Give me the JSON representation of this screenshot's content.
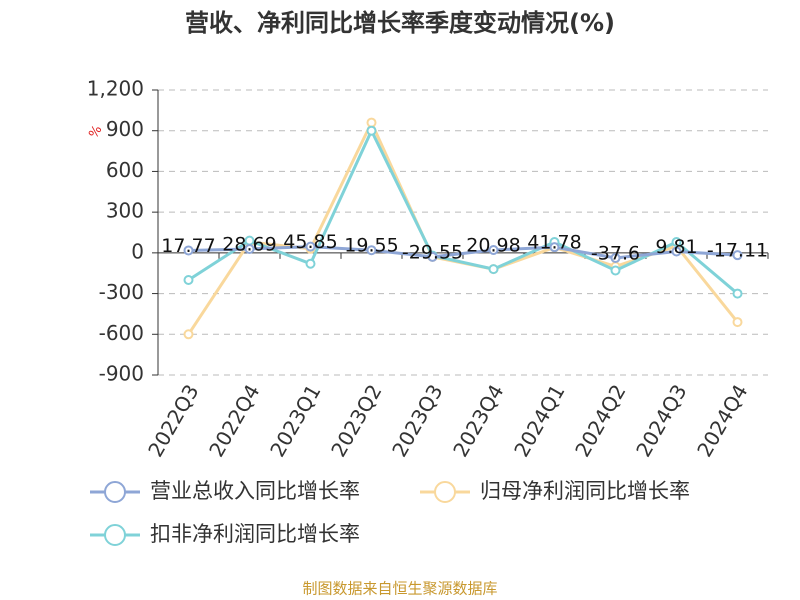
{
  "chart_data": {
    "type": "line",
    "title": "营收、净利同比增长率季度变动情况(%)",
    "y_unit": "%",
    "source": "制图数据来自恒生聚源数据库",
    "categories": [
      "2022Q3",
      "2022Q4",
      "2023Q1",
      "2023Q2",
      "2023Q3",
      "2023Q4",
      "2024Q1",
      "2024Q2",
      "2024Q3",
      "2024Q4"
    ],
    "series": [
      {
        "name": "营业总收入同比增长率",
        "color": "#8ea6d6",
        "values": [
          17.77,
          28.69,
          45.85,
          19.55,
          -29.55,
          20.98,
          41.78,
          -37.6,
          9.81,
          -17.11
        ],
        "show_labels": true
      },
      {
        "name": "归母净利润同比增长率",
        "color": "#f9d89c",
        "values": [
          -600,
          80,
          30,
          960,
          -30,
          -120,
          40,
          -100,
          50,
          -510
        ]
      },
      {
        "name": "扣非净利润同比增长率",
        "color": "#7fd2d8",
        "values": [
          -200,
          90,
          -80,
          900,
          -20,
          -120,
          80,
          -130,
          80,
          -300
        ]
      }
    ],
    "ylim": [
      -900,
      1200
    ],
    "yticks": [
      -900,
      -600,
      -300,
      0,
      300,
      600,
      900,
      {
        "value": 1200,
        "label": "1,200"
      }
    ],
    "grid": true
  }
}
